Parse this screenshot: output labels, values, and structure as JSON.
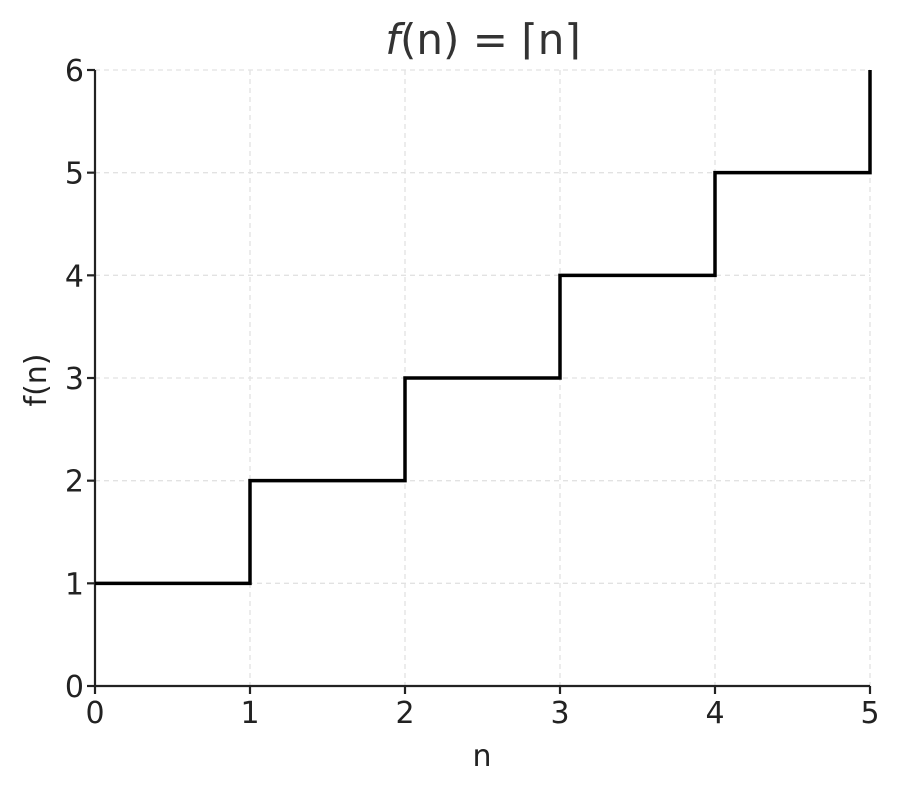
{
  "chart_data": {
    "type": "line",
    "drawstyle": "steps-pre",
    "title": "f(n) = ⌈n⌉",
    "title_parts": {
      "fn": "f",
      "arg": "(n)",
      "eq": " = ",
      "ceil": "⌈n⌉"
    },
    "xlabel": "n",
    "ylabel": "f(n)",
    "xlim": [
      0,
      5
    ],
    "ylim": [
      0,
      6
    ],
    "xticks": [
      0,
      1,
      2,
      3,
      4,
      5
    ],
    "yticks": [
      0,
      1,
      2,
      3,
      4,
      5,
      6
    ],
    "xtick_labels": [
      "0",
      "1",
      "2",
      "3",
      "4",
      "5"
    ],
    "ytick_labels": [
      "0",
      "1",
      "2",
      "3",
      "4",
      "5",
      "6"
    ],
    "grid": true,
    "series": [
      {
        "x": [
          0,
          1,
          2,
          3,
          4,
          5
        ],
        "y": [
          1,
          2,
          3,
          4,
          5,
          6
        ],
        "color": "#000000"
      }
    ]
  }
}
